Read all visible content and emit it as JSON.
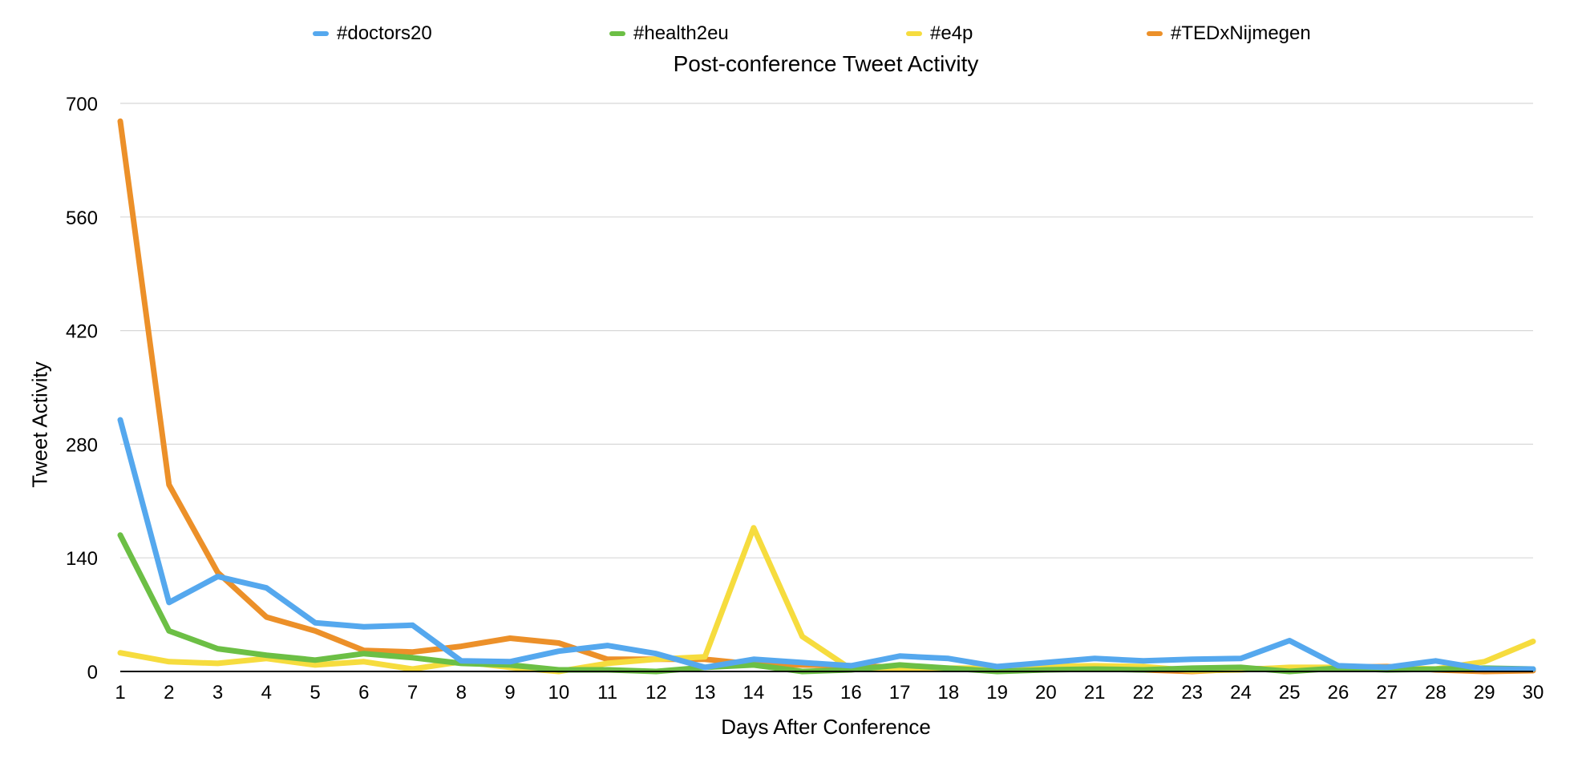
{
  "chart_data": {
    "type": "line",
    "title": "Post-conference Tweet Activity",
    "xlabel": "Days After Conference",
    "ylabel": "Tweet Activity",
    "x": [
      1,
      2,
      3,
      4,
      5,
      6,
      7,
      8,
      9,
      10,
      11,
      12,
      13,
      14,
      15,
      16,
      17,
      18,
      19,
      20,
      21,
      22,
      23,
      24,
      25,
      26,
      27,
      28,
      29,
      30
    ],
    "ylim": [
      0,
      700
    ],
    "yticks": [
      0,
      140,
      280,
      420,
      560,
      700
    ],
    "grid": true,
    "legend_position": "top",
    "series": [
      {
        "name": "#doctors20",
        "color": "#55a8ee",
        "values": [
          310,
          85,
          117,
          103,
          60,
          55,
          57,
          13,
          12,
          25,
          32,
          22,
          5,
          15,
          11,
          7,
          19,
          16,
          6,
          11,
          16,
          13,
          15,
          16,
          38,
          7,
          5,
          13,
          3,
          3
        ]
      },
      {
        "name": "#health2eu",
        "color": "#6cbf45",
        "values": [
          168,
          50,
          28,
          20,
          14,
          22,
          17,
          10,
          8,
          2,
          2,
          0,
          5,
          8,
          0,
          2,
          8,
          4,
          0,
          2,
          3,
          2,
          4,
          5,
          0,
          4,
          2,
          3,
          4,
          3
        ]
      },
      {
        "name": "#e4p",
        "color": "#f6dc3e",
        "values": [
          23,
          12,
          10,
          16,
          8,
          12,
          3,
          12,
          5,
          0,
          10,
          15,
          18,
          177,
          43,
          3,
          4,
          4,
          4,
          6,
          7,
          6,
          1,
          2,
          5,
          5,
          5,
          3,
          12,
          37
        ]
      },
      {
        "name": "#TEDxNijmegen",
        "color": "#ec9029",
        "values": [
          678,
          230,
          122,
          67,
          50,
          26,
          24,
          31,
          41,
          35,
          15,
          15,
          15,
          9,
          8,
          7,
          5,
          3,
          3,
          3,
          4,
          2,
          0,
          3,
          4,
          5,
          6,
          2,
          0,
          1
        ]
      }
    ]
  }
}
